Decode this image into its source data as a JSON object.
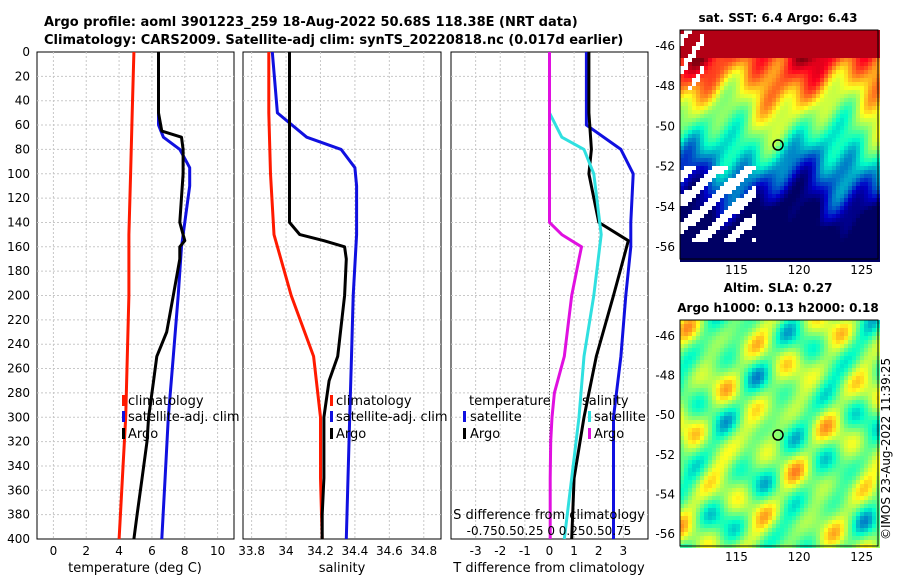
{
  "titles": {
    "line1": "Argo profile: aoml 3901223_259 18-Aug-2022 50.68S 118.38E (NRT data)",
    "line2": "Climatology: CARS2009. Satellite-adj clim: synTS_20220818.nc (0.017d earlier)"
  },
  "colors": {
    "climatology": "#ff1a00",
    "satellite": "#1010e0",
    "argo": "#000000",
    "s_satellite": "#30e0e0",
    "s_argo": "#e010e0"
  },
  "chart_data": [
    {
      "type": "line",
      "panel": "temperature",
      "xlabel": "temperature (deg C)",
      "ylabel": "",
      "xlim": [
        -1,
        11
      ],
      "ylim": [
        400,
        0
      ],
      "xticks": [
        "0",
        "2",
        "4",
        "6",
        "8",
        "10"
      ],
      "yticks": [
        "0",
        "20",
        "40",
        "60",
        "80",
        "100",
        "120",
        "140",
        "160",
        "180",
        "200",
        "220",
        "240",
        "260",
        "280",
        "300",
        "320",
        "340",
        "360",
        "380",
        "400"
      ],
      "legend": [
        "climatology",
        "satellite-adj. clim",
        "Argo"
      ],
      "legend_position": "center-right",
      "series": [
        {
          "name": "climatology",
          "color_key": "climatology",
          "depth": [
            0,
            50,
            100,
            150,
            200,
            250,
            300,
            350,
            400
          ],
          "values": [
            4.9,
            4.8,
            4.7,
            4.6,
            4.6,
            4.5,
            4.4,
            4.2,
            4.0
          ]
        },
        {
          "name": "satellite-adj. clim",
          "color_key": "satellite",
          "depth": [
            0,
            60,
            70,
            80,
            95,
            110,
            160,
            200,
            250,
            300,
            350,
            400
          ],
          "values": [
            6.4,
            6.4,
            6.7,
            7.7,
            8.3,
            8.3,
            7.8,
            7.6,
            7.3,
            7.0,
            6.8,
            6.6
          ]
        },
        {
          "name": "Argo",
          "color_key": "argo",
          "depth": [
            0,
            50,
            65,
            70,
            80,
            100,
            140,
            150,
            155,
            160,
            170,
            200,
            230,
            250,
            270,
            290,
            300,
            320,
            350,
            380,
            400
          ],
          "values": [
            6.4,
            6.4,
            6.6,
            7.8,
            7.9,
            7.9,
            7.7,
            7.9,
            8.0,
            7.7,
            7.7,
            7.3,
            6.9,
            6.3,
            6.1,
            5.9,
            5.8,
            5.7,
            5.4,
            5.1,
            4.9
          ]
        }
      ]
    },
    {
      "type": "line",
      "panel": "salinity",
      "xlabel": "salinity",
      "ylabel": "",
      "xlim": [
        33.75,
        34.9
      ],
      "ylim": [
        400,
        0
      ],
      "xticks": [
        "33.8",
        "34",
        "34.2",
        "34.4",
        "34.6",
        "34.8"
      ],
      "legend": [
        "climatology",
        "satellite-adj. clim",
        "Argo"
      ],
      "legend_position": "center-right",
      "series": [
        {
          "name": "climatology",
          "color_key": "climatology",
          "depth": [
            0,
            50,
            100,
            150,
            200,
            250,
            300,
            350,
            400
          ],
          "values": [
            33.9,
            33.9,
            33.91,
            33.93,
            34.03,
            34.16,
            34.2,
            34.2,
            34.21
          ]
        },
        {
          "name": "satellite-adj. clim",
          "color_key": "satellite",
          "depth": [
            0,
            50,
            70,
            80,
            95,
            110,
            150,
            200,
            250,
            300,
            350,
            400
          ],
          "values": [
            33.92,
            33.95,
            34.12,
            34.32,
            34.4,
            34.41,
            34.41,
            34.39,
            34.38,
            34.37,
            34.36,
            34.35
          ]
        },
        {
          "name": "Argo",
          "color_key": "argo",
          "depth": [
            0,
            70,
            140,
            150,
            155,
            160,
            170,
            200,
            250,
            270,
            290,
            300,
            320,
            350,
            380,
            400
          ],
          "values": [
            34.02,
            34.02,
            34.02,
            34.08,
            34.22,
            34.34,
            34.35,
            34.34,
            34.3,
            34.25,
            34.23,
            34.22,
            34.22,
            34.22,
            34.21,
            34.21
          ]
        }
      ]
    },
    {
      "type": "line",
      "panel": "difference",
      "xlabel": "T difference from climatology",
      "ylabel": "",
      "xlim": [
        -4,
        4
      ],
      "ylim": [
        400,
        0
      ],
      "xticks": [
        "-3",
        "-2",
        "-1",
        "0",
        "1",
        "2",
        "3"
      ],
      "top_label": "S difference from climatology",
      "top_ticks": [
        "-0.75",
        "0.5",
        "0.25",
        "0",
        "0.25",
        "0.5",
        "0.75"
      ],
      "top_ticks_text": "-0.750.50.25  0  0.250.50.75",
      "legend_groups": {
        "temperature": [
          "satellite",
          "Argo"
        ],
        "salinity": [
          "satellite",
          "Argo"
        ]
      },
      "legend_position": "center",
      "series": [
        {
          "name": "T satellite",
          "color_key": "satellite",
          "depth": [
            0,
            60,
            80,
            100,
            140,
            160,
            200,
            250,
            300,
            350,
            400
          ],
          "values": [
            1.5,
            1.5,
            2.9,
            3.4,
            3.3,
            3.3,
            3.1,
            2.9,
            2.6,
            2.6,
            2.6
          ]
        },
        {
          "name": "T Argo",
          "color_key": "argo",
          "depth": [
            0,
            50,
            80,
            100,
            140,
            155,
            170,
            200,
            250,
            300,
            350,
            400
          ],
          "values": [
            1.6,
            1.6,
            1.7,
            1.6,
            2.0,
            3.2,
            3.0,
            2.6,
            1.9,
            1.4,
            1.0,
            0.9
          ]
        },
        {
          "name": "S satellite",
          "color_key": "s_satellite",
          "depth": [
            0,
            50,
            70,
            80,
            100,
            150,
            200,
            250,
            300,
            350,
            400
          ],
          "values": [
            0.0,
            0.0,
            0.5,
            1.4,
            1.8,
            2.1,
            1.8,
            1.4,
            1.2,
            0.9,
            0.6
          ]
        },
        {
          "name": "S Argo",
          "color_key": "s_argo",
          "depth": [
            0,
            140,
            150,
            160,
            170,
            200,
            250,
            280,
            300,
            320,
            350,
            400
          ],
          "values": [
            0.0,
            0.0,
            0.5,
            1.3,
            1.2,
            0.9,
            0.6,
            0.2,
            0.1,
            0.05,
            0.03,
            0.03
          ]
        }
      ]
    },
    {
      "type": "heatmap",
      "panel": "sst-map",
      "title": "sat. SST: 6.4 Argo: 6.43",
      "xticks": [
        "115",
        "120",
        "125"
      ],
      "yticks": [
        "-46",
        "-48",
        "-50",
        "-52",
        "-54",
        "-56"
      ],
      "marker": "Argo position 118.38E 50.68S"
    },
    {
      "type": "heatmap",
      "panel": "sla-map",
      "title_line1": "Altim. SLA: 0.27",
      "title_line2": "Argo h1000: 0.13 h2000: 0.18",
      "xticks": [
        "115",
        "120",
        "125"
      ],
      "yticks": [
        "-46",
        "-48",
        "-50",
        "-52",
        "-54",
        "-56"
      ],
      "marker": "Argo position 118.38E 50.68S"
    }
  ],
  "credit": "©IMOS 23-Aug-2022 11:39:25"
}
